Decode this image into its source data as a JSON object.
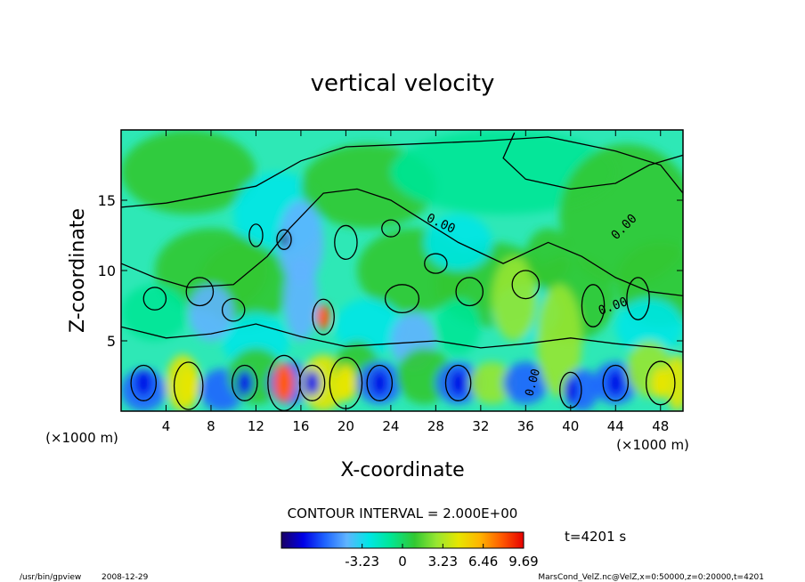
{
  "chart_data": {
    "type": "heatmap",
    "title": "vertical velocity",
    "xlabel": "X-coordinate",
    "ylabel": "Z-coordinate",
    "x_unit": "(×1000 m)",
    "y_unit": "(×1000 m)",
    "xlim": [
      0,
      50
    ],
    "ylim": [
      0,
      20
    ],
    "x_ticks": [
      4,
      8,
      12,
      16,
      20,
      24,
      28,
      32,
      36,
      40,
      44,
      48
    ],
    "y_ticks": [
      5,
      10,
      15
    ],
    "contour_interval_text": "CONTOUR INTERVAL = 2.000E+00",
    "contour_labels": [
      "0.00",
      "0.00",
      "0.00",
      "0.00"
    ],
    "colorbar": {
      "min": -9.69,
      "max": 9.69,
      "tick_labels": [
        "-3.23",
        "0",
        "3.23",
        "6.46",
        "9.69"
      ],
      "tick_values": [
        -3.23,
        0,
        3.23,
        6.46,
        9.69
      ]
    },
    "grid": false,
    "legend": "none"
  },
  "footer": {
    "program": "/usr/bin/gpview",
    "date": "2008-12-29",
    "time_label": "t=4201 s",
    "source": "MarsCond_VelZ.nc@VelZ,x=0:50000,z=0:20000,t=4201"
  },
  "colors": {
    "colormap": [
      "#1a0064",
      "#0000e6",
      "#1e64ff",
      "#5fb4ff",
      "#00e6e6",
      "#00e696",
      "#32c832",
      "#96e632",
      "#e6e600",
      "#ffb400",
      "#ff5a00",
      "#e60000"
    ]
  }
}
